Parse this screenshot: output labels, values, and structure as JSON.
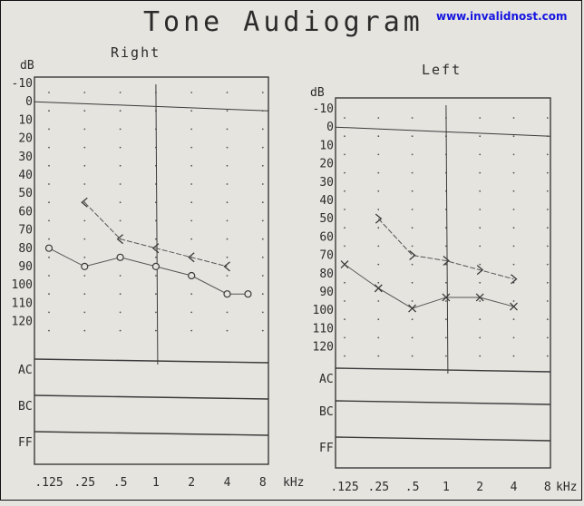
{
  "title": "Tone Audiogram",
  "watermark": "www.invalidnost.com",
  "x_unit": "kHz",
  "y_unit": "dB",
  "row_labels": [
    "AC",
    "BC",
    "FF"
  ],
  "chart_data": [
    {
      "type": "line",
      "title": "Right",
      "xlabel": "kHz",
      "ylabel": "dB",
      "x": [
        ".125",
        ".25",
        ".5",
        "1",
        "2",
        "4",
        "8"
      ],
      "y_ticks": [
        -10,
        0,
        10,
        20,
        30,
        40,
        50,
        60,
        70,
        80,
        90,
        100,
        110,
        120
      ],
      "ylim": [
        -10,
        120
      ],
      "y_inverted": true,
      "grid": "dotted",
      "series": [
        {
          "marker": "<",
          "points": [
            {
              "x": 0.25,
              "y": 50
            },
            {
              "x": 0.5,
              "y": 70
            },
            {
              "x": 1,
              "y": 75
            },
            {
              "x": 2,
              "y": 80
            },
            {
              "x": 4,
              "y": 85
            }
          ]
        },
        {
          "marker": "o",
          "points": [
            {
              "x": 0.125,
              "y": 75
            },
            {
              "x": 0.25,
              "y": 85
            },
            {
              "x": 0.5,
              "y": 80
            },
            {
              "x": 1,
              "y": 85
            },
            {
              "x": 2,
              "y": 90
            },
            {
              "x": 4,
              "y": 100
            },
            {
              "x": 6,
              "y": 100
            }
          ]
        }
      ]
    },
    {
      "type": "line",
      "title": "Left",
      "xlabel": "kHz",
      "ylabel": "dB",
      "x": [
        ".125",
        ".25",
        ".5",
        "1",
        "2",
        "4",
        "8"
      ],
      "y_ticks": [
        -10,
        0,
        10,
        20,
        30,
        40,
        50,
        60,
        70,
        80,
        90,
        100,
        110,
        120
      ],
      "ylim": [
        -10,
        120
      ],
      "y_inverted": true,
      "grid": "dotted",
      "series": [
        {
          "marker": ">",
          "points": [
            {
              "x": 0.25,
              "y": 45
            },
            {
              "x": 0.5,
              "y": 65
            },
            {
              "x": 1,
              "y": 68
            },
            {
              "x": 2,
              "y": 73
            },
            {
              "x": 4,
              "y": 78
            }
          ]
        },
        {
          "marker": "x",
          "points": [
            {
              "x": 0.125,
              "y": 70
            },
            {
              "x": 0.25,
              "y": 83
            },
            {
              "x": 0.5,
              "y": 94
            },
            {
              "x": 1,
              "y": 88
            },
            {
              "x": 2,
              "y": 88
            },
            {
              "x": 4,
              "y": 93
            }
          ]
        }
      ]
    }
  ]
}
